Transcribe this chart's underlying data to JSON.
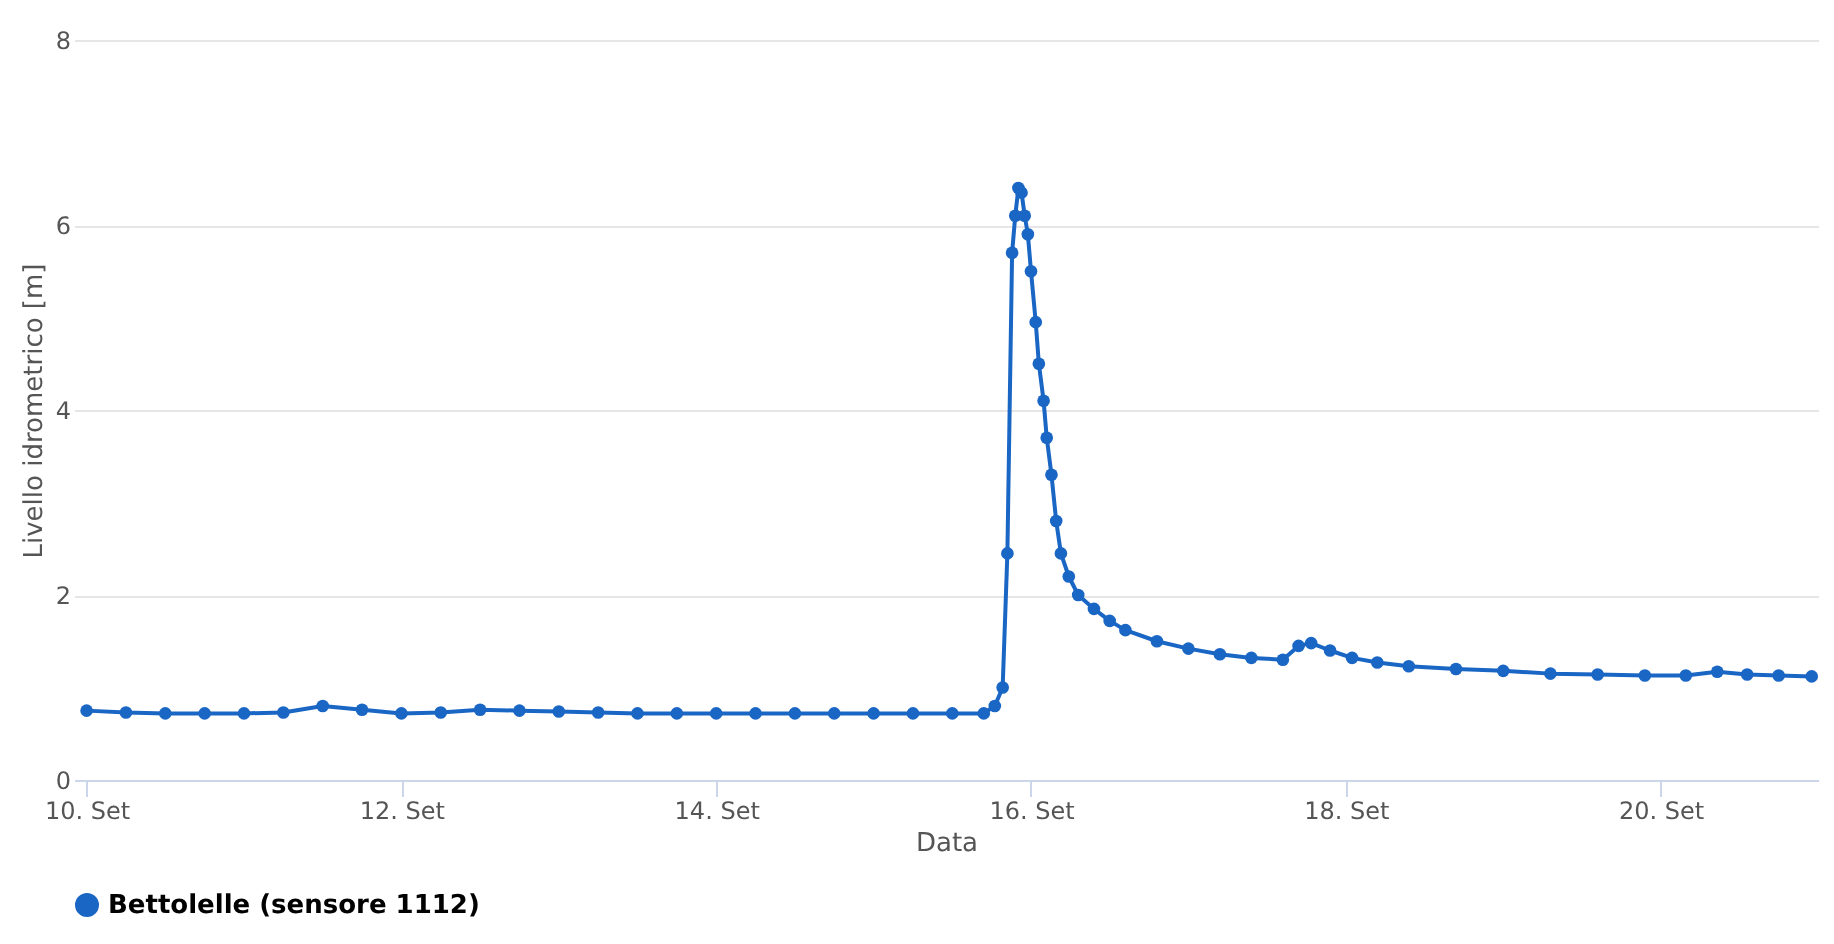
{
  "chart_data": {
    "type": "line",
    "xlabel": "Data",
    "ylabel": "Livello idrometrico [m]",
    "xlim": [
      9.92,
      21.0
    ],
    "ylim": [
      0,
      8
    ],
    "yticks": [
      0,
      2,
      4,
      6,
      8
    ],
    "xticks": [
      {
        "value": 10,
        "label": "10. Set"
      },
      {
        "value": 12,
        "label": "12. Set"
      },
      {
        "value": 14,
        "label": "14. Set"
      },
      {
        "value": 16,
        "label": "16. Set"
      },
      {
        "value": 18,
        "label": "18. Set"
      },
      {
        "value": 20,
        "label": "20. Set"
      }
    ],
    "grid": "y",
    "legend": "bottom",
    "marker": "circle",
    "line_style": "solid",
    "series": [
      {
        "name": "Bettolelle (sensore 1112)",
        "color": "#1a66c4",
        "x": [
          10.0,
          10.25,
          10.5,
          10.75,
          11.0,
          11.25,
          11.5,
          11.75,
          12.0,
          12.25,
          12.5,
          12.75,
          13.0,
          13.25,
          13.5,
          13.75,
          14.0,
          14.25,
          14.5,
          14.75,
          15.0,
          15.25,
          15.5,
          15.7,
          15.77,
          15.82,
          15.85,
          15.88,
          15.9,
          15.92,
          15.94,
          15.96,
          15.98,
          16.0,
          16.03,
          16.05,
          16.08,
          16.1,
          16.13,
          16.16,
          16.19,
          16.24,
          16.3,
          16.4,
          16.5,
          16.6,
          16.8,
          17.0,
          17.2,
          17.4,
          17.6,
          17.7,
          17.78,
          17.9,
          18.04,
          18.2,
          18.4,
          18.7,
          19.0,
          19.3,
          19.6,
          19.9,
          20.16,
          20.36,
          20.55,
          20.75,
          20.96
        ],
        "values": [
          0.75,
          0.73,
          0.72,
          0.72,
          0.72,
          0.73,
          0.8,
          0.76,
          0.72,
          0.73,
          0.76,
          0.75,
          0.74,
          0.73,
          0.72,
          0.72,
          0.72,
          0.72,
          0.72,
          0.72,
          0.72,
          0.72,
          0.72,
          0.72,
          0.8,
          1.0,
          2.45,
          5.7,
          6.1,
          6.4,
          6.35,
          6.1,
          5.9,
          5.5,
          4.95,
          4.5,
          4.1,
          3.7,
          3.3,
          2.8,
          2.45,
          2.2,
          2.0,
          1.85,
          1.72,
          1.62,
          1.5,
          1.42,
          1.36,
          1.32,
          1.3,
          1.45,
          1.48,
          1.4,
          1.32,
          1.27,
          1.23,
          1.2,
          1.18,
          1.15,
          1.14,
          1.13,
          1.13,
          1.17,
          1.14,
          1.13,
          1.12
        ]
      }
    ]
  }
}
